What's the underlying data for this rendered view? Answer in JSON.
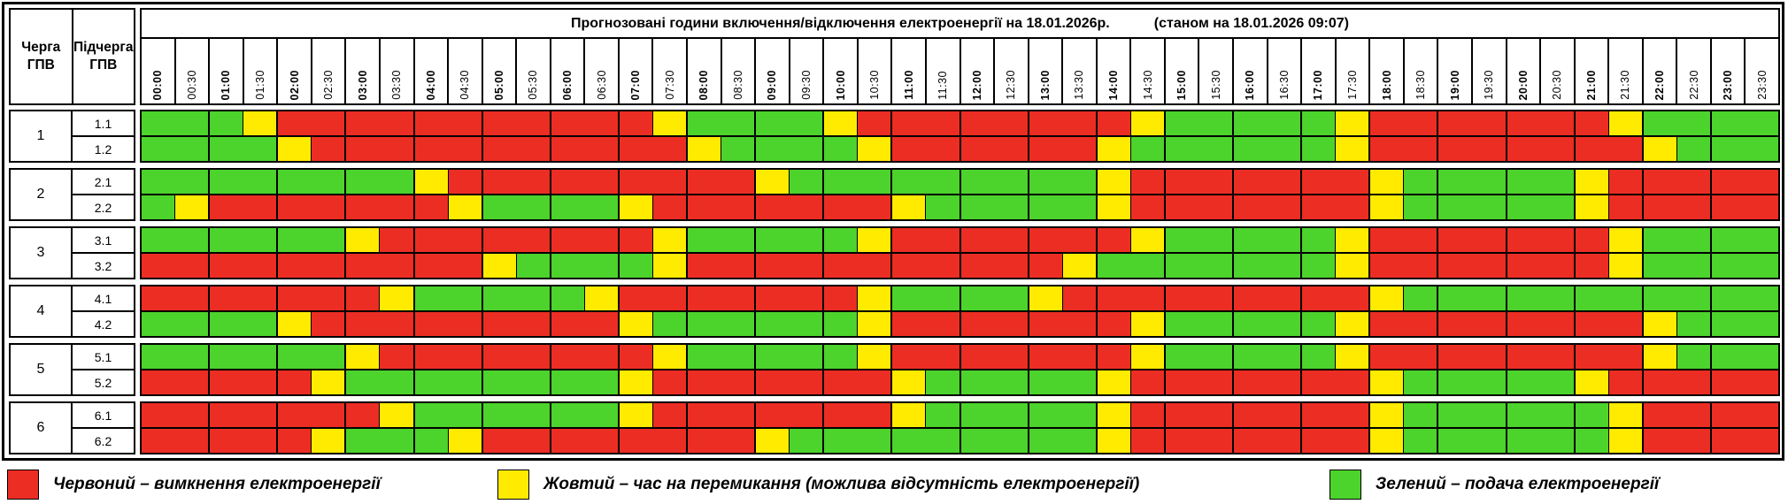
{
  "title": {
    "main": "Прогнозовані години включення/відключення електроенергії на 18.01.2026р.",
    "as_of": "(станом на 18.01.2026 09:07)"
  },
  "columns": {
    "queue_header_line1": "Черга",
    "queue_header_line2": "ГПВ",
    "subqueue_header_line1": "Підчерга",
    "subqueue_header_line2": "ГПВ"
  },
  "time_slots": [
    "00:00",
    "00:30",
    "01:00",
    "01:30",
    "02:00",
    "02:30",
    "03:00",
    "03:30",
    "04:00",
    "04:30",
    "05:00",
    "05:30",
    "06:00",
    "06:30",
    "07:00",
    "07:30",
    "08:00",
    "08:30",
    "09:00",
    "09:30",
    "10:00",
    "10:30",
    "11:00",
    "11:30",
    "12:00",
    "12:30",
    "13:00",
    "13:30",
    "14:00",
    "14:30",
    "15:00",
    "15:30",
    "16:00",
    "16:30",
    "17:00",
    "17:30",
    "18:00",
    "18:30",
    "19:00",
    "19:30",
    "20:00",
    "20:30",
    "21:00",
    "21:30",
    "22:00",
    "22:30",
    "23:00",
    "23:30"
  ],
  "colors": {
    "red_off": "#EC2D24",
    "yellow_switch": "#FFEB00",
    "green_on": "#4CD32C"
  },
  "cell_code_meaning": {
    "G": "подача",
    "R": "вимкнення",
    "Y": "перемикання"
  },
  "queues": [
    {
      "queue": "1",
      "rows": [
        {
          "label": "1.1",
          "blocks": [
            "GG",
            "GY",
            "RR",
            "RR",
            "RR",
            "RR",
            "RR",
            "RY",
            "GG",
            "GG",
            "YR",
            "RR",
            "RR",
            "RR",
            "RY",
            "GG",
            "GG",
            "GY",
            "RR",
            "RR",
            "RR",
            "RY",
            "GG",
            "GG"
          ]
        },
        {
          "label": "1.2",
          "blocks": [
            "GG",
            "GG",
            "YR",
            "RR",
            "RR",
            "RR",
            "RR",
            "RR",
            "YG",
            "GG",
            "GY",
            "RR",
            "RR",
            "RR",
            "YG",
            "GG",
            "GG",
            "GY",
            "RR",
            "RR",
            "RR",
            "RR",
            "YG",
            "GG"
          ]
        }
      ]
    },
    {
      "queue": "2",
      "rows": [
        {
          "label": "2.1",
          "blocks": [
            "GG",
            "GG",
            "GG",
            "GG",
            "YR",
            "RR",
            "RR",
            "RR",
            "RR",
            "YG",
            "GG",
            "GG",
            "GG",
            "GG",
            "YR",
            "RR",
            "RR",
            "RR",
            "YG",
            "GG",
            "GG",
            "YR",
            "RR",
            "RR"
          ]
        },
        {
          "label": "2.2",
          "blocks": [
            "GY",
            "RR",
            "RR",
            "RR",
            "RY",
            "GG",
            "GG",
            "YR",
            "RR",
            "RR",
            "RR",
            "YG",
            "GG",
            "GG",
            "YR",
            "RR",
            "RR",
            "RR",
            "YG",
            "GG",
            "GG",
            "YR",
            "RR",
            "RR"
          ]
        }
      ]
    },
    {
      "queue": "3",
      "rows": [
        {
          "label": "3.1",
          "blocks": [
            "GG",
            "GG",
            "GG",
            "YR",
            "RR",
            "RR",
            "RR",
            "RY",
            "GG",
            "GG",
            "GY",
            "RR",
            "RR",
            "RR",
            "RY",
            "GG",
            "GG",
            "GY",
            "RR",
            "RR",
            "RR",
            "RY",
            "GG",
            "GG"
          ]
        },
        {
          "label": "3.2",
          "blocks": [
            "RR",
            "RR",
            "RR",
            "RR",
            "RR",
            "YG",
            "GG",
            "GY",
            "RR",
            "RR",
            "RR",
            "RR",
            "RR",
            "RY",
            "GG",
            "GG",
            "GG",
            "GY",
            "RR",
            "RR",
            "RR",
            "RY",
            "GG",
            "GG"
          ]
        }
      ]
    },
    {
      "queue": "4",
      "rows": [
        {
          "label": "4.1",
          "blocks": [
            "RR",
            "RR",
            "RR",
            "RY",
            "GG",
            "GG",
            "GY",
            "RR",
            "RR",
            "RR",
            "RY",
            "GG",
            "GG",
            "YR",
            "RR",
            "RR",
            "RR",
            "RR",
            "YG",
            "GG",
            "GG",
            "GG",
            "GG",
            "GG"
          ]
        },
        {
          "label": "4.2",
          "blocks": [
            "GG",
            "GG",
            "YR",
            "RR",
            "RR",
            "RR",
            "RR",
            "YG",
            "GG",
            "GG",
            "GY",
            "RR",
            "RR",
            "RR",
            "RY",
            "GG",
            "GG",
            "GY",
            "RR",
            "RR",
            "RR",
            "RR",
            "YG",
            "GG"
          ]
        }
      ]
    },
    {
      "queue": "5",
      "rows": [
        {
          "label": "5.1",
          "blocks": [
            "GG",
            "GG",
            "GG",
            "YR",
            "RR",
            "RR",
            "RR",
            "RY",
            "GG",
            "GG",
            "GY",
            "RR",
            "RR",
            "RR",
            "RY",
            "GG",
            "GG",
            "GY",
            "RR",
            "RR",
            "RR",
            "RR",
            "YG",
            "GG"
          ]
        },
        {
          "label": "5.2",
          "blocks": [
            "RR",
            "RR",
            "RY",
            "GG",
            "GG",
            "GG",
            "GG",
            "YR",
            "RR",
            "RR",
            "RR",
            "YG",
            "GG",
            "GG",
            "YR",
            "RR",
            "RR",
            "RR",
            "YG",
            "GG",
            "GG",
            "YR",
            "RR",
            "RR"
          ]
        }
      ]
    },
    {
      "queue": "6",
      "rows": [
        {
          "label": "6.1",
          "blocks": [
            "RR",
            "RR",
            "RR",
            "RY",
            "GG",
            "GG",
            "GG",
            "YR",
            "RR",
            "RR",
            "RR",
            "YG",
            "GG",
            "GG",
            "YR",
            "RR",
            "RR",
            "RR",
            "YG",
            "GG",
            "GG",
            "GY",
            "RR",
            "RR"
          ]
        },
        {
          "label": "6.2",
          "blocks": [
            "RR",
            "RR",
            "RY",
            "GG",
            "GY",
            "RR",
            "RR",
            "RR",
            "RR",
            "YG",
            "GG",
            "GG",
            "GG",
            "GG",
            "YR",
            "RR",
            "RR",
            "RR",
            "YG",
            "GG",
            "GG",
            "GY",
            "RR",
            "RR"
          ]
        }
      ]
    }
  ],
  "legend": [
    {
      "key": "red_off",
      "label": "Червоний – вимкнення електроенергії"
    },
    {
      "key": "yellow_switch",
      "label": "Жовтий – час на перемикання (можлива відсутність електроенергії)"
    },
    {
      "key": "green_on",
      "label": "Зелений – подача електроенергії"
    }
  ]
}
